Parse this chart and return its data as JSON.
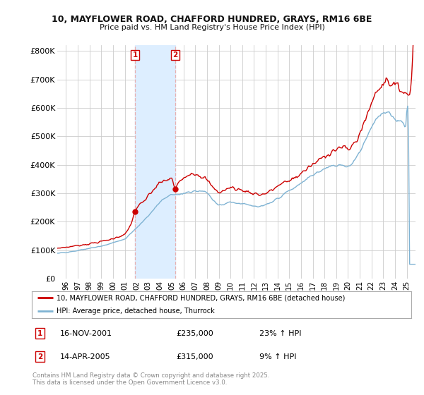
{
  "title1": "10, MAYFLOWER ROAD, CHAFFORD HUNDRED, GRAYS, RM16 6BE",
  "title2": "Price paid vs. HM Land Registry's House Price Index (HPI)",
  "ylabel_ticks": [
    "£0",
    "£100K",
    "£200K",
    "£300K",
    "£400K",
    "£500K",
    "£600K",
    "£700K",
    "£800K"
  ],
  "ytick_vals": [
    0,
    100000,
    200000,
    300000,
    400000,
    500000,
    600000,
    700000,
    800000
  ],
  "ylim": [
    0,
    820000
  ],
  "xlim_start": 1995.25,
  "xlim_end": 2025.75,
  "xtick_years": [
    1996,
    1997,
    1998,
    1999,
    2000,
    2001,
    2002,
    2003,
    2004,
    2005,
    2006,
    2007,
    2008,
    2009,
    2010,
    2011,
    2012,
    2013,
    2014,
    2015,
    2016,
    2017,
    2018,
    2019,
    2020,
    2021,
    2022,
    2023,
    2024,
    2025
  ],
  "xtick_labels": [
    "96",
    "97",
    "98",
    "99",
    "00",
    "01",
    "02",
    "03",
    "04",
    "05",
    "06",
    "07",
    "08",
    "09",
    "10",
    "11",
    "12",
    "13",
    "14",
    "15",
    "16",
    "17",
    "18",
    "19",
    "20",
    "21",
    "22",
    "23",
    "24",
    "25"
  ],
  "transaction1_date": "16-NOV-2001",
  "transaction1_price": 235000,
  "transaction1_hpi": "23% ↑ HPI",
  "transaction1_x": 2001.877,
  "transaction2_date": "14-APR-2005",
  "transaction2_price": 315000,
  "transaction2_hpi": "9% ↑ HPI",
  "transaction2_x": 2005.288,
  "legend_label_red": "10, MAYFLOWER ROAD, CHAFFORD HUNDRED, GRAYS, RM16 6BE (detached house)",
  "legend_label_blue": "HPI: Average price, detached house, Thurrock",
  "footer": "Contains HM Land Registry data © Crown copyright and database right 2025.\nThis data is licensed under the Open Government Licence v3.0.",
  "red_color": "#cc0000",
  "blue_color": "#7fb3d3",
  "shade_color": "#ddeeff",
  "vline_color": "#e8b0b0",
  "box_color": "#cc0000",
  "background_color": "#ffffff",
  "grid_color": "#cccccc",
  "marker_color": "#cc0000",
  "transaction1_marker_y": 235000,
  "transaction2_marker_y": 315000
}
